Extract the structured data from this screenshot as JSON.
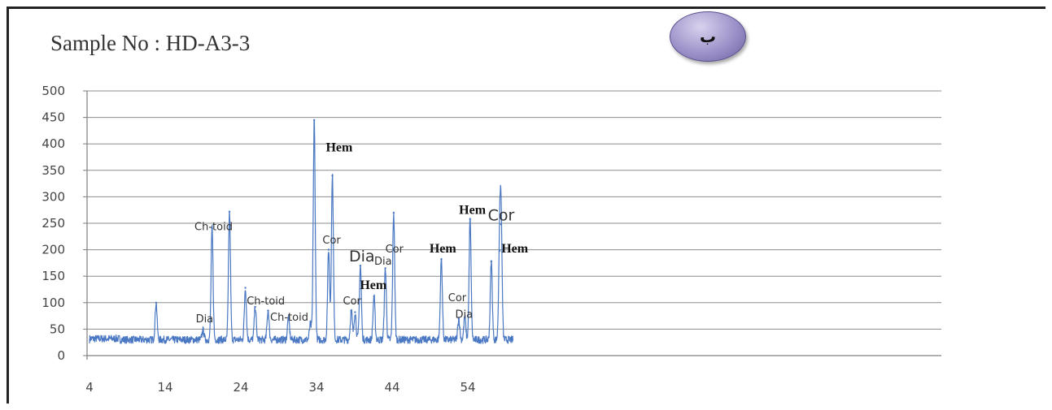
{
  "badge": {
    "label": "ب"
  },
  "chart_data": {
    "type": "line",
    "title": "Sample No : HD-A3-3",
    "xlabel": "",
    "ylabel": "",
    "xlim": [
      4,
      60
    ],
    "ylim": [
      0,
      500
    ],
    "x_ticks": [
      4,
      14,
      24,
      34,
      44,
      54
    ],
    "y_ticks": [
      0,
      50,
      100,
      150,
      200,
      250,
      300,
      350,
      400,
      450,
      500
    ],
    "grid": "horizontal",
    "legend": "none",
    "colors": {
      "series": "#4a78c2",
      "grid": "#8c8c8c",
      "axis": "#7f7f7f"
    },
    "baseline": 30,
    "peaks": [
      {
        "x": 12.8,
        "y": 100
      },
      {
        "x": 19.0,
        "y": 48
      },
      {
        "x": 20.2,
        "y": 240
      },
      {
        "x": 22.5,
        "y": 272
      },
      {
        "x": 24.6,
        "y": 128
      },
      {
        "x": 25.9,
        "y": 92
      },
      {
        "x": 27.6,
        "y": 85
      },
      {
        "x": 30.3,
        "y": 72
      },
      {
        "x": 33.2,
        "y": 60
      },
      {
        "x": 33.7,
        "y": 445
      },
      {
        "x": 35.6,
        "y": 200
      },
      {
        "x": 36.1,
        "y": 340
      },
      {
        "x": 38.6,
        "y": 85
      },
      {
        "x": 39.1,
        "y": 82
      },
      {
        "x": 39.8,
        "y": 170
      },
      {
        "x": 41.6,
        "y": 112
      },
      {
        "x": 43.1,
        "y": 165
      },
      {
        "x": 44.2,
        "y": 270
      },
      {
        "x": 50.5,
        "y": 182
      },
      {
        "x": 52.8,
        "y": 70
      },
      {
        "x": 53.6,
        "y": 72
      },
      {
        "x": 54.3,
        "y": 258
      },
      {
        "x": 57.1,
        "y": 178
      },
      {
        "x": 58.2,
        "y": 198
      },
      {
        "x": 58.4,
        "y": 248
      }
    ],
    "annotations": [
      {
        "text": "Ch-toid",
        "x": 20.4,
        "y": 237,
        "style": "sans",
        "size": 13
      },
      {
        "text": "Dia",
        "x": 19.2,
        "y": 63,
        "style": "sans",
        "size": 13
      },
      {
        "text": "Ch-toid",
        "x": 27.3,
        "y": 97,
        "style": "sans",
        "size": 13
      },
      {
        "text": "Ch-toid",
        "x": 30.4,
        "y": 66,
        "style": "sans",
        "size": 13
      },
      {
        "text": "Hem",
        "x": 37.0,
        "y": 386,
        "style": "serif",
        "size": 16
      },
      {
        "text": "Cor",
        "x": 36.0,
        "y": 212,
        "style": "sans",
        "size": 13
      },
      {
        "text": "Cor",
        "x": 38.7,
        "y": 97,
        "style": "sans",
        "size": 13
      },
      {
        "text": "Dia",
        "x": 40.0,
        "y": 178,
        "style": "sans",
        "size": 19
      },
      {
        "text": "Hem",
        "x": 41.5,
        "y": 126,
        "style": "serif",
        "size": 16
      },
      {
        "text": "Dia",
        "x": 42.8,
        "y": 172,
        "style": "sans",
        "size": 13
      },
      {
        "text": "Cor",
        "x": 44.3,
        "y": 195,
        "style": "sans",
        "size": 13
      },
      {
        "text": "Hem",
        "x": 50.7,
        "y": 195,
        "style": "serif",
        "size": 16
      },
      {
        "text": "Cor",
        "x": 52.6,
        "y": 103,
        "style": "sans",
        "size": 13
      },
      {
        "text": "Dia",
        "x": 53.5,
        "y": 71,
        "style": "sans",
        "size": 13
      },
      {
        "text": "Hem",
        "x": 54.6,
        "y": 268,
        "style": "serif",
        "size": 16
      },
      {
        "text": "Cor",
        "x": 58.4,
        "y": 255,
        "style": "sans",
        "size": 19
      },
      {
        "text": "Hem",
        "x": 60.2,
        "y": 195,
        "style": "serif",
        "size": 16
      }
    ]
  }
}
